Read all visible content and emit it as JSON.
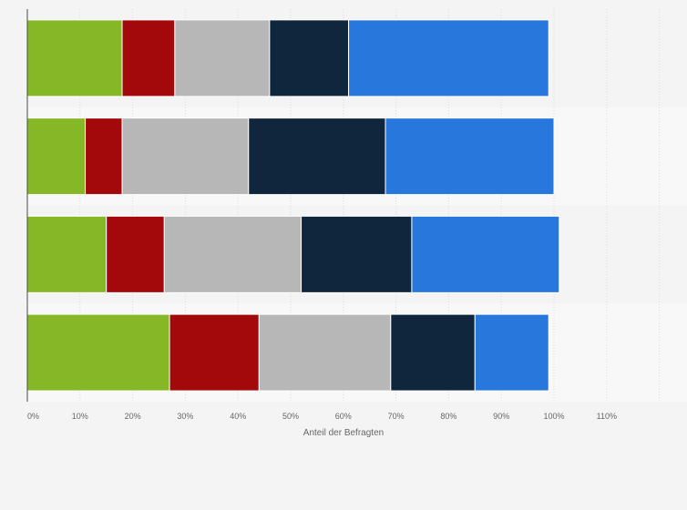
{
  "chart_data": {
    "type": "bar",
    "orientation": "horizontal",
    "stacked": true,
    "categories": [
      "",
      "",
      "",
      ""
    ],
    "series": [
      {
        "color": "#86b726",
        "values": [
          18,
          11,
          15,
          27
        ]
      },
      {
        "color": "#a3080b",
        "values": [
          10,
          7,
          11,
          17
        ]
      },
      {
        "color": "#b7b7b7",
        "values": [
          18,
          24,
          26,
          25
        ]
      },
      {
        "color": "#10263c",
        "values": [
          15,
          26,
          21,
          16
        ]
      },
      {
        "color": "#2777dd",
        "values": [
          38,
          32,
          28,
          14
        ]
      }
    ],
    "xlabel": "Anteil der Befragten",
    "ylabel": "",
    "title": "",
    "xlim": [
      0,
      120
    ],
    "x_ticks": [
      "0%",
      "10%",
      "20%",
      "30%",
      "40%",
      "50%",
      "60%",
      "70%",
      "80%",
      "90%",
      "100%",
      "110%"
    ],
    "grid": true,
    "legend": "none"
  }
}
